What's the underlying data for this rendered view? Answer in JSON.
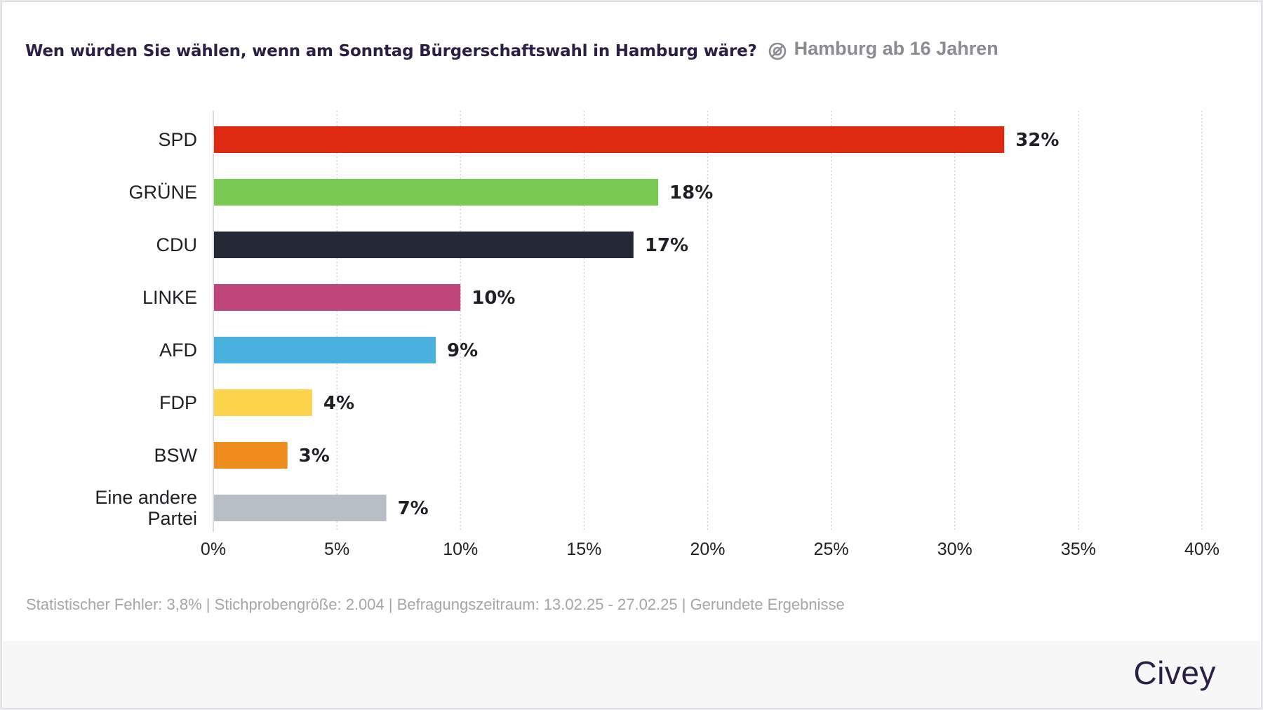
{
  "header": {
    "title": "Wen würden Sie wählen, wenn am Sonntag Bürgerschaftswahl in Hamburg wäre?",
    "population": "Hamburg ab 16 Jahren",
    "population_icon": "target-group-icon"
  },
  "footer": {
    "note": "Statistischer Fehler: 3,8% | Stichprobengröße: 2.004 | Befragungszeitraum: 13.02.25 - 27.02.25 | Gerundete Ergebnisse",
    "brand": "Civey"
  },
  "chart_data": {
    "type": "bar",
    "orientation": "horizontal",
    "title": "Wen würden Sie wählen, wenn am Sonntag Bürgerschaftswahl in Hamburg wäre?",
    "xlabel": "",
    "ylabel": "",
    "xlim": [
      0,
      40
    ],
    "x_ticks": [
      "0%",
      "5%",
      "10%",
      "15%",
      "20%",
      "25%",
      "30%",
      "35%",
      "40%"
    ],
    "grid": "vertical-dotted",
    "categories": [
      "SPD",
      "GRÜNE",
      "CDU",
      "LINKE",
      "AFD",
      "FDP",
      "BSW",
      "Eine andere Partei"
    ],
    "category_lines": [
      [
        "SPD"
      ],
      [
        "GRÜNE"
      ],
      [
        "CDU"
      ],
      [
        "LINKE"
      ],
      [
        "AFD"
      ],
      [
        "FDP"
      ],
      [
        "BSW"
      ],
      [
        "Eine andere",
        "Partei"
      ]
    ],
    "values": [
      32,
      18,
      17,
      10,
      9,
      4,
      3,
      7
    ],
    "value_labels": [
      "32%",
      "18%",
      "17%",
      "10%",
      "9%",
      "4%",
      "3%",
      "7%"
    ],
    "colors": [
      "#df2a12",
      "#79c952",
      "#252835",
      "#bf457a",
      "#48b1dd",
      "#fcd44c",
      "#ee8d1d",
      "#b7bec5"
    ],
    "colors_meaning": "party colors"
  }
}
